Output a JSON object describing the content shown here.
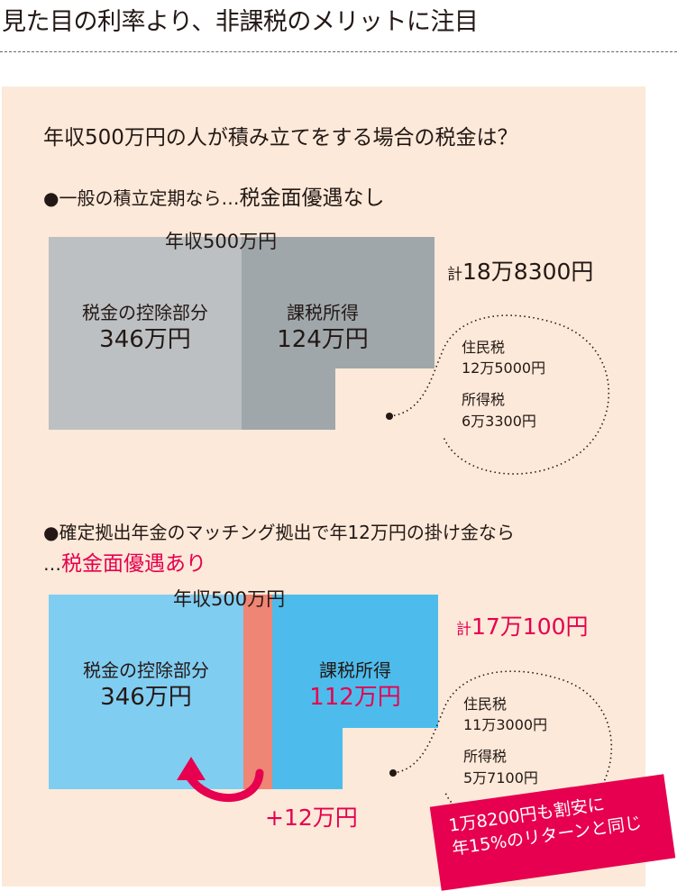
{
  "heading": "見た目の利率より、非課税のメリットに注目",
  "question": "年収500万円の人が積み立てをする場合の税金は？",
  "case1": {
    "line_prefix": "●一般の積立定期なら…",
    "line_emphasis": "税金面優遇なし",
    "income_label": "年収500万円",
    "deduction_label": "税金の控除部分",
    "deduction_value": "346万円",
    "taxable_label": "課税所得",
    "taxable_value": "124万円",
    "total_prefix": "計",
    "total_value": "18万8300円",
    "resident_tax_label": "住民税",
    "resident_tax_value": "12万5000円",
    "income_tax_label": "所得税",
    "income_tax_value": "6万3300円"
  },
  "case2": {
    "line": "●確定拠出年金のマッチング拠出で年12万円の掛け金なら",
    "line2_prefix": "…",
    "line2_emphasis": "税金面優遇あり",
    "income_label": "年収500万円",
    "deduction_label": "税金の控除部分",
    "deduction_value": "346万円",
    "taxable_label": "課税所得",
    "taxable_value": "112万円",
    "plus_value": "+12万円",
    "total_prefix": "計",
    "total_value": "17万100円",
    "resident_tax_label": "住民税",
    "resident_tax_value": "11万3000円",
    "income_tax_label": "所得税",
    "income_tax_value": "5万7100円"
  },
  "callout": {
    "line1": "1万8200円も割安に",
    "line2": "年15%のリターンと同じ"
  },
  "colors": {
    "panel": "#fce9d9",
    "gray_light": "#bcc0c2",
    "gray_dark": "#9fa7aa",
    "blue_light": "#80cdf2",
    "blue": "#4dbcec",
    "salmon": "#ef8574",
    "accent": "#e6004f"
  }
}
